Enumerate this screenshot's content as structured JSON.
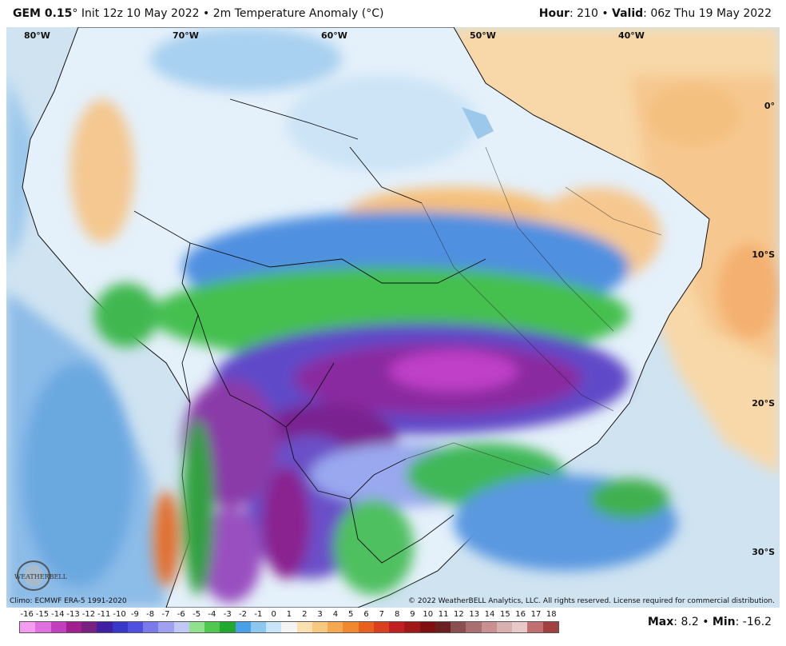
{
  "header": {
    "model": "GEM 0.15",
    "degree": "°",
    "init": "Init 12z 10 May 2022",
    "sep": "•",
    "field": "2m Temperature Anomaly (°C)",
    "hour_label": "Hour",
    "hour_value": ": 210",
    "valid_label": "Valid",
    "valid_value": ": 06z Thu 19 May 2022"
  },
  "map": {
    "longitudes": [
      "80°W",
      "70°W",
      "60°W",
      "50°W",
      "40°W"
    ],
    "latitudes": [
      "0°",
      "10°S",
      "20°S",
      "30°S"
    ],
    "climo": "Climo: ECMWF ERA-5 1991-2020",
    "copyright": "© 2022 WeatherBELL Analytics, LLC. All rights reserved. License required for commercial distribution.",
    "logo_text": "WEATHERBELL"
  },
  "colorbar": {
    "labels": [
      "-16",
      "-15",
      "-14",
      "-13",
      "-12",
      "-11",
      "-10",
      "-9",
      "-8",
      "-7",
      "-6",
      "-5",
      "-4",
      "-3",
      "-2",
      "-1",
      "0",
      "1",
      "2",
      "3",
      "4",
      "5",
      "6",
      "7",
      "8",
      "9",
      "10",
      "11",
      "12",
      "13",
      "14",
      "15",
      "16",
      "17",
      "18"
    ],
    "colors": [
      "#f49cf0",
      "#e070e0",
      "#c040c0",
      "#a02090",
      "#7a2080",
      "#4020a0",
      "#3838c8",
      "#5050e0",
      "#7a7ae8",
      "#a0a0f0",
      "#c0c8f8",
      "#90e090",
      "#50c850",
      "#20a830",
      "#4aa0e8",
      "#8ac8f0",
      "#c8e4f8",
      "#f4f4f4",
      "#fbe0b0",
      "#f8c880",
      "#f4a850",
      "#f08830",
      "#e86020",
      "#d84020",
      "#c02020",
      "#a01818",
      "#801010",
      "#6a2020",
      "#8a5050",
      "#a87070",
      "#c89090",
      "#d8b0b0",
      "#e8c8c8",
      "#c07070",
      "#a04040"
    ]
  },
  "stats": {
    "max_label": "Max",
    "max_value": ": 8.2",
    "sep": "•",
    "min_label": "Min",
    "min_value": ": -16.2"
  }
}
